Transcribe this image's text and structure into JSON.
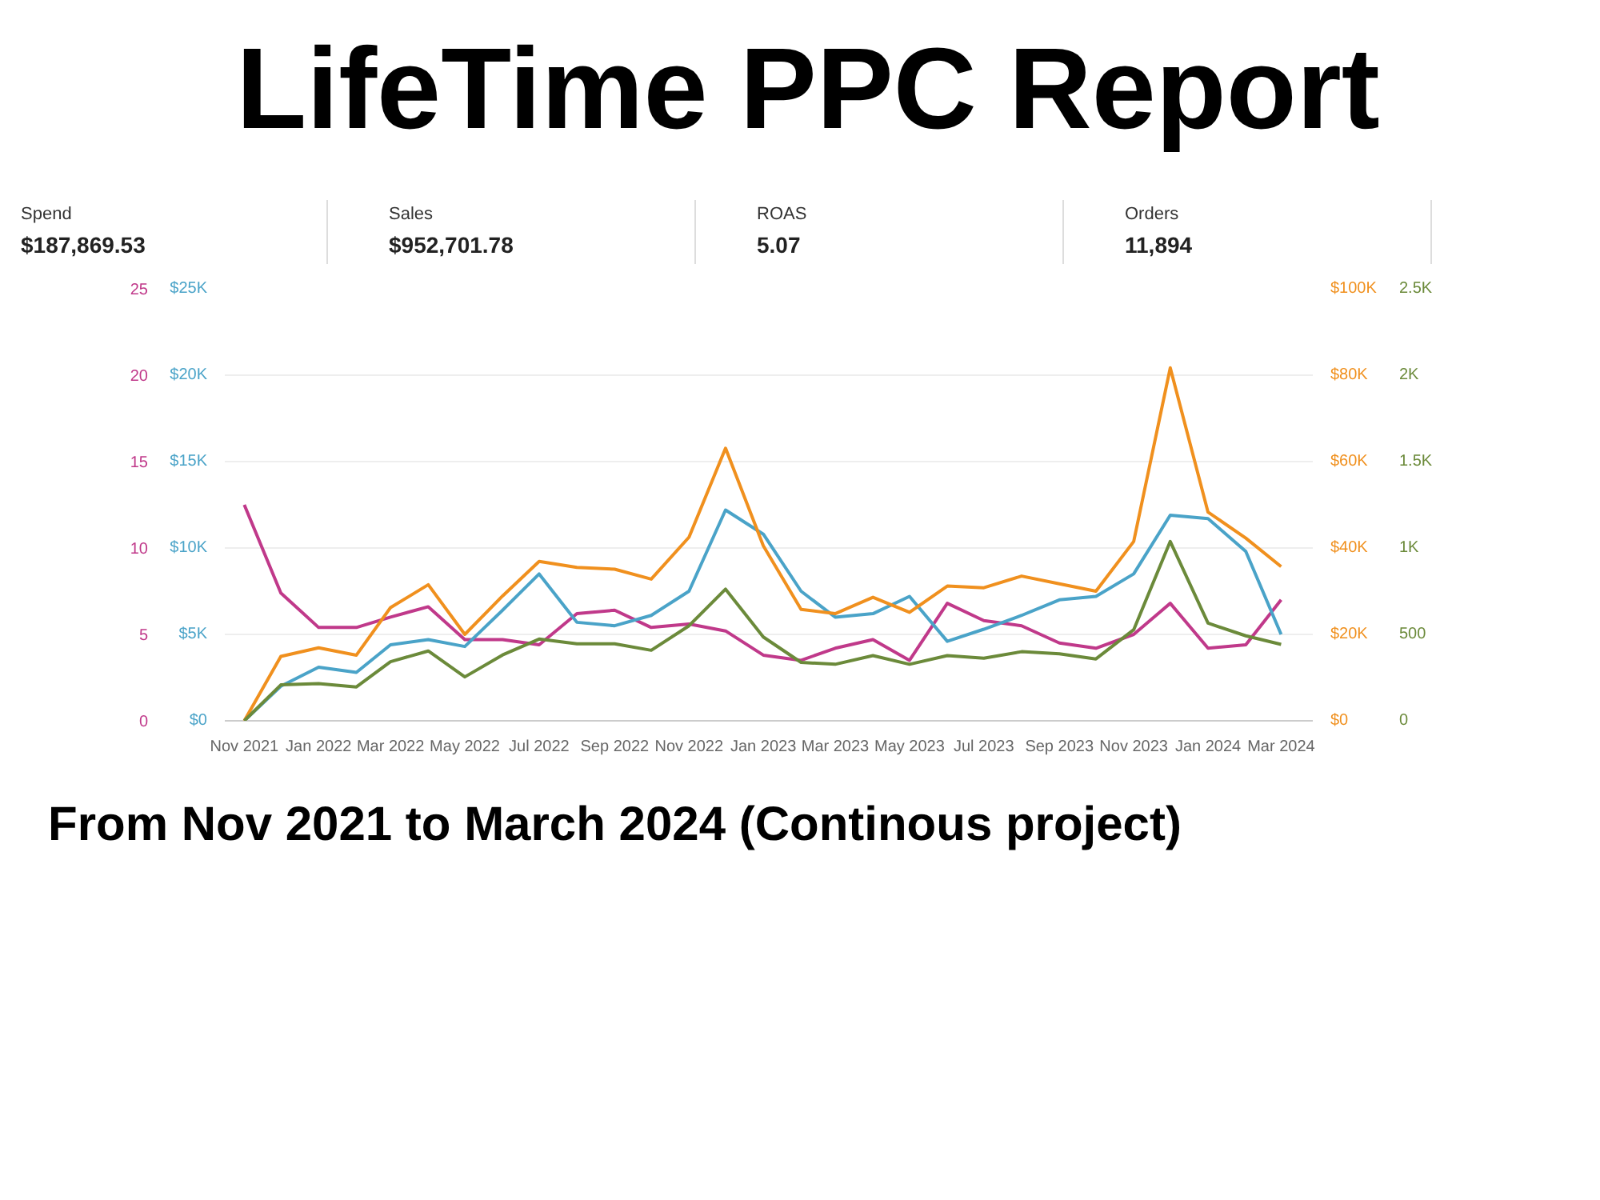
{
  "chart_data": [
    {
      "type": "line",
      "title": "LifeTime PPC Report",
      "annotations": [
        "Spend",
        "$187,869.53",
        "Sales",
        "$952,701.78",
        "ROAS",
        "5.07",
        "Orders",
        "11,894",
        "From Nov 2021 to March 2024 (Continous project)"
      ],
      "x": [
        "2021-11",
        "2021-12",
        "2022-01",
        "2022-02",
        "2022-03",
        "2022-04",
        "2022-05",
        "2022-06",
        "2022-07",
        "2022-08",
        "2022-09",
        "2022-10",
        "2022-11",
        "2022-12",
        "2023-01",
        "2023-02",
        "2023-03",
        "2023-04",
        "2023-05",
        "2023-06",
        "2023-07",
        "2023-08",
        "2023-09",
        "2023-10",
        "2023-11",
        "2023-12",
        "2024-01",
        "2024-02",
        "2024-03"
      ],
      "xlim": [
        "2021-10-16",
        "2024-03-27"
      ],
      "xticks": [
        {
          "value": "2021-11",
          "label": "Nov 2021"
        },
        {
          "value": "2022-01",
          "label": "Jan 2022"
        },
        {
          "value": "2022-03",
          "label": "Mar 2022"
        },
        {
          "value": "2022-05",
          "label": "May 2022"
        },
        {
          "value": "2022-07",
          "label": "Jul 2022"
        },
        {
          "value": "2022-09",
          "label": "Sep 2022"
        },
        {
          "value": "2022-11",
          "label": "Nov 2022"
        },
        {
          "value": "2023-01",
          "label": "Jan 2023"
        },
        {
          "value": "2023-03",
          "label": "Mar 2023"
        },
        {
          "value": "2023-05",
          "label": "May 2023"
        },
        {
          "value": "2023-07",
          "label": "Jul 2023"
        },
        {
          "value": "2023-09",
          "label": "Sep 2023"
        },
        {
          "value": "2023-11",
          "label": "Nov 2023"
        },
        {
          "value": "2024-01",
          "label": "Jan 2024"
        },
        {
          "value": "2024-03",
          "label": "Mar 2024"
        }
      ],
      "ylim": [
        0,
        25
      ],
      "yticks": [
        0,
        5,
        10,
        15,
        20,
        25
      ],
      "y2lim": [
        0,
        25000
      ],
      "y2ticks": [
        {
          "value": 0,
          "label": "$0"
        },
        {
          "value": 5000,
          "label": "$5K"
        },
        {
          "value": 10000,
          "label": "$10K"
        },
        {
          "value": 15000,
          "label": "$15K"
        },
        {
          "value": 20000,
          "label": "$20K"
        },
        {
          "value": 25000,
          "label": "$25K"
        }
      ],
      "grid": "y",
      "series": [
        {
          "color": "#c0398a",
          "values": [
            12.5,
            7.4,
            5.4,
            5.4,
            6.0,
            6.6,
            4.7,
            4.7,
            4.4,
            6.2,
            6.4,
            5.4,
            5.6,
            5.2,
            3.8,
            3.5,
            4.2,
            4.7,
            3.5,
            6.8,
            5.8,
            5.5,
            4.5,
            4.2,
            5.0,
            6.8,
            4.2,
            4.4,
            7.0
          ]
        },
        {
          "color": "#4aa3c8",
          "axis": "y2",
          "values": [
            0,
            2000,
            3100,
            2800,
            4400,
            4700,
            4300,
            6400,
            8500,
            5700,
            5500,
            6100,
            7500,
            12200,
            10800,
            7500,
            6000,
            6200,
            7200,
            4600,
            5300,
            6100,
            7000,
            7200,
            8500,
            11900,
            11700,
            9800,
            5000
          ]
        }
      ]
    },
    {
      "type": "line",
      "x": [
        "2021-11",
        "2021-12",
        "2022-01",
        "2022-02",
        "2022-03",
        "2022-04",
        "2022-05",
        "2022-06",
        "2022-07",
        "2022-08",
        "2022-09",
        "2022-10",
        "2022-11",
        "2022-12",
        "2023-01",
        "2023-02",
        "2023-03",
        "2023-04",
        "2023-05",
        "2023-06",
        "2023-07",
        "2023-08",
        "2023-09",
        "2023-10",
        "2023-11",
        "2023-12",
        "2024-01",
        "2024-02",
        "2024-03"
      ],
      "xlim": [
        "2021-10-16",
        "2024-03-27"
      ],
      "ylim": [
        0,
        100000
      ],
      "yticks": [
        {
          "value": 0,
          "label": "$0"
        },
        {
          "value": 20000,
          "label": "$20K"
        },
        {
          "value": 40000,
          "label": "$40K"
        },
        {
          "value": 60000,
          "label": "$60K"
        },
        {
          "value": 80000,
          "label": "$80K"
        },
        {
          "value": 100000,
          "label": "$100K"
        }
      ],
      "y2lim": [
        0,
        2500
      ],
      "y2ticks": [
        0,
        500,
        {
          "value": 1000,
          "label": "1K"
        },
        {
          "value": 1500,
          "label": "1.5K"
        },
        {
          "value": 2000,
          "label": "2K"
        },
        {
          "value": 2500,
          "label": "2.5K"
        }
      ],
      "tick_labels": "y",
      "series": [
        {
          "color": "#f0901e",
          "values": [
            0,
            14900,
            16900,
            15200,
            26200,
            31500,
            20000,
            28900,
            36900,
            35500,
            35100,
            32800,
            42500,
            63100,
            40500,
            25800,
            24800,
            28600,
            25100,
            31200,
            30800,
            33500,
            31700,
            30000,
            41500,
            81700,
            48300,
            42300,
            35700
          ]
        },
        {
          "color": "#6b8a3a",
          "axis": "y2",
          "values": [
            0,
            208,
            215,
            196,
            342,
            404,
            254,
            381,
            473,
            446,
            446,
            408,
            550,
            762,
            485,
            338,
            327,
            377,
            327,
            377,
            362,
            400,
            388,
            358,
            527,
            1038,
            565,
            492,
            442
          ]
        }
      ]
    }
  ]
}
